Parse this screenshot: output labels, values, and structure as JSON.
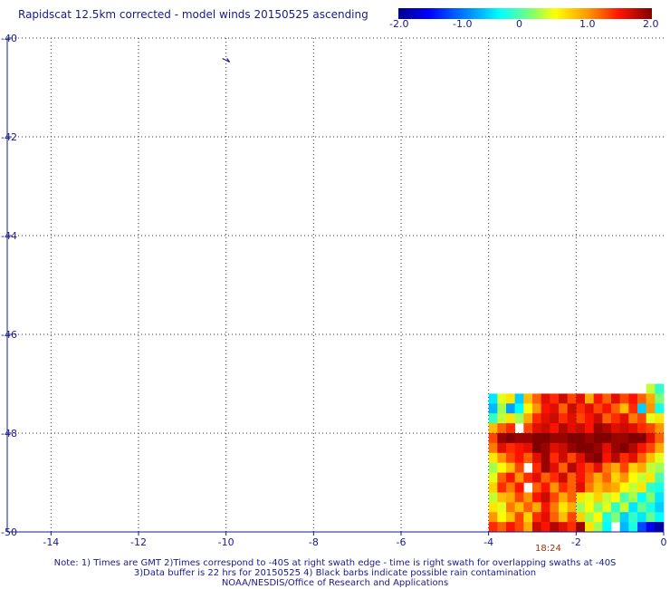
{
  "title": "Rapidscat 12.5km corrected - model winds 20150525 ascending",
  "colorbar": {
    "min": -2.0,
    "max": 2.0,
    "tick_labels": [
      "-2.0",
      "-1.0",
      "0",
      "1.0",
      "2.0"
    ],
    "tick_values": [
      -2.0,
      -1.0,
      0,
      1.0,
      2.0
    ]
  },
  "swath_time_label": "18:24",
  "notes": [
    "Note: 1) Times are GMT 2)Times correspond to -40S at right swath edge - time is right swath for overlapping swaths at -40S",
    "3)Data buffer is 22 hrs for 20150525 4) Black barbs indicate possible rain contamination",
    "NOAA/NESDIS/Office of Research and Applications"
  ],
  "chart_data": {
    "type": "heatmap",
    "x_axis": {
      "range": [
        -15,
        0
      ],
      "ticks": [
        -14,
        -12,
        -10,
        -8,
        -6,
        -4,
        -2,
        0
      ],
      "tick_labels": [
        "-14",
        "-12",
        "-10",
        "-8",
        "-6",
        "-4",
        "-2",
        "0"
      ]
    },
    "y_axis": {
      "range": [
        -50,
        -40
      ],
      "ticks": [
        -40,
        -42,
        -44,
        -46,
        -48,
        -50
      ],
      "tick_labels": [
        "-40",
        "-42",
        "-44",
        "-46",
        "-48",
        "-50"
      ]
    },
    "grid": true,
    "cell_size_deg": [
      0.2,
      0.2
    ],
    "rows": [
      {
        "lat": -47.1,
        "lon_start": -0.4,
        "values": [
          0.3,
          -0.2
        ]
      },
      {
        "lat": -47.3,
        "lon_start": -4.0,
        "values": [
          -0.5,
          0.4,
          0.6,
          -0.6,
          0.8,
          1.2,
          1.6,
          1.4,
          1.7,
          1.3,
          1.6,
          0.9,
          1.5,
          1.2,
          1.6,
          1.3,
          1.5,
          1.2,
          0.9,
          0.1
        ]
      },
      {
        "lat": -47.5,
        "lon_start": -4.0,
        "values": [
          -0.7,
          0.2,
          -0.8,
          -0.4,
          0.5,
          1.0,
          1.5,
          1.6,
          1.2,
          1.7,
          1.4,
          1.6,
          1.3,
          1.5,
          1.2,
          0.8,
          1.4,
          -0.6,
          1.0,
          -0.3
        ]
      },
      {
        "lat": -47.7,
        "lon_start": -4.0,
        "values": [
          -0.2,
          0.3,
          0.6,
          0.2,
          0.9,
          1.4,
          1.6,
          1.7,
          1.4,
          1.6,
          1.3,
          1.5,
          1.7,
          1.2,
          1.4,
          1.6,
          1.1,
          1.3,
          0.4,
          0.6
        ]
      },
      {
        "lat": -47.9,
        "lon_start": -4.0,
        "values": [
          0.8,
          1.2,
          1.4,
          null,
          1.3,
          1.6,
          1.7,
          1.5,
          1.8,
          1.6,
          1.7,
          1.5,
          1.9,
          1.8,
          1.6,
          1.7,
          1.6,
          1.4,
          1.3,
          1.0
        ]
      },
      {
        "lat": -48.1,
        "lon_start": -4.0,
        "values": [
          1.3,
          1.9,
          2.0,
          1.9,
          1.9,
          2.0,
          2.0,
          1.9,
          1.9,
          2.0,
          2.0,
          1.9,
          2.0,
          2.0,
          1.9,
          1.9,
          2.0,
          2.0,
          1.6,
          1.2
        ]
      },
      {
        "lat": -48.3,
        "lon_start": -4.0,
        "values": [
          1.1,
          1.6,
          1.4,
          1.5,
          1.6,
          2.0,
          1.9,
          1.6,
          1.7,
          1.9,
          2.0,
          2.0,
          1.9,
          1.6,
          1.9,
          2.0,
          1.8,
          1.5,
          1.3,
          0.9
        ]
      },
      {
        "lat": -48.5,
        "lon_start": -4.0,
        "values": [
          0.6,
          1.0,
          1.3,
          1.5,
          1.2,
          1.6,
          1.9,
          1.4,
          1.7,
          1.3,
          1.6,
          1.9,
          2.0,
          1.5,
          1.8,
          1.4,
          1.6,
          1.2,
          0.8,
          0.4
        ]
      },
      {
        "lat": -48.7,
        "lon_start": -4.0,
        "values": [
          0.2,
          0.5,
          0.8,
          1.3,
          null,
          1.4,
          1.9,
          1.6,
          1.2,
          1.8,
          1.5,
          1.3,
          1.6,
          1.1,
          0.9,
          1.3,
          0.7,
          0.9,
          0.3,
          0.2
        ]
      },
      {
        "lat": -48.9,
        "lon_start": -4.0,
        "values": [
          0.4,
          1.2,
          1.5,
          1.0,
          1.4,
          1.6,
          1.2,
          1.4,
          1.7,
          1.2,
          1.5,
          1.2,
          0.9,
          1.2,
          0.7,
          1.0,
          0.5,
          0.3,
          0.6,
          -0.1
        ]
      },
      {
        "lat": -49.1,
        "lon_start": -4.0,
        "values": [
          0.7,
          1.4,
          1.1,
          1.5,
          null,
          1.2,
          1.5,
          1.0,
          1.4,
          1.2,
          1.6,
          1.1,
          0.8,
          1.0,
          0.9,
          0.5,
          0.3,
          0.6,
          -0.2,
          -0.3
        ]
      },
      {
        "lat": -49.3,
        "lon_start": -4.0,
        "values": [
          0.3,
          0.8,
          0.9,
          1.3,
          1.0,
          1.5,
          1.7,
          1.3,
          0.9,
          1.2,
          0.6,
          0.4,
          0.7,
          0.3,
          0.5,
          -0.1,
          0.2,
          -0.4,
          0.1,
          -0.5
        ]
      },
      {
        "lat": -49.5,
        "lon_start": -4.0,
        "values": [
          0.6,
          0.4,
          1.1,
          0.8,
          1.2,
          0.9,
          1.5,
          1.1,
          0.6,
          0.9,
          0.2,
          0.5,
          0.1,
          0.4,
          -0.2,
          0.3,
          -0.5,
          0.0,
          -0.3,
          -0.6
        ]
      },
      {
        "lat": -49.7,
        "lon_start": -4.0,
        "values": [
          1.0,
          0.5,
          0.8,
          1.3,
          0.7,
          1.4,
          1.6,
          1.2,
          0.8,
          1.3,
          0.7,
          0.2,
          0.5,
          -0.3,
          0.1,
          -0.6,
          -0.2,
          -0.5,
          0.0,
          -0.4
        ]
      },
      {
        "lat": -49.9,
        "lon_start": -4.0,
        "values": [
          1.4,
          1.2,
          1.5,
          1.3,
          0.9,
          1.7,
          1.5,
          1.8,
          1.6,
          1.4,
          1.9,
          0.6,
          0.2,
          -0.4,
          null,
          -0.7,
          -0.3,
          -1.2,
          -1.6,
          -1.9
        ]
      }
    ],
    "vectors": [
      {
        "lon": -10.0,
        "lat": -40.45
      }
    ]
  }
}
